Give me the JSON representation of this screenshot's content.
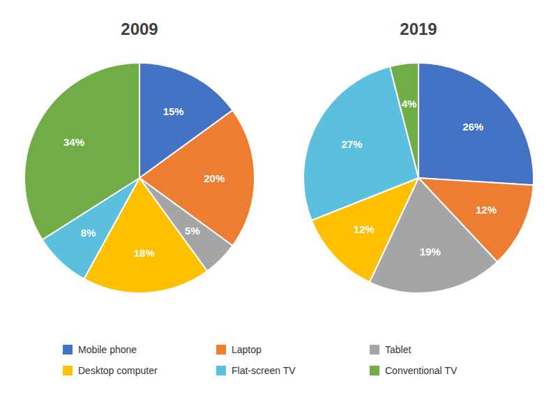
{
  "chart_data": [
    {
      "type": "pie",
      "title": "2009",
      "categories": [
        "Mobile phone",
        "Laptop",
        "Tablet",
        "Desktop computer",
        "Flat-screen TV",
        "Conventional TV"
      ],
      "values": [
        15,
        20,
        5,
        18,
        8,
        34
      ],
      "value_labels": [
        "15%",
        "20%",
        "5%",
        "18%",
        "8%",
        "34%"
      ],
      "colors": [
        "#4472C4",
        "#ED7D31",
        "#A5A5A5",
        "#FFC000",
        "#5BC0DE",
        "#70AD47"
      ],
      "data_labels": true,
      "legend": "bottom"
    },
    {
      "type": "pie",
      "title": "2019",
      "categories": [
        "Mobile phone",
        "Laptop",
        "Tablet",
        "Desktop computer",
        "Flat-screen TV",
        "Conventional TV"
      ],
      "values": [
        26,
        12,
        19,
        12,
        27,
        4
      ],
      "value_labels": [
        "26%",
        "12%",
        "19%",
        "12%",
        "27%",
        "4%"
      ],
      "colors": [
        "#4472C4",
        "#ED7D31",
        "#A5A5A5",
        "#FFC000",
        "#5BC0DE",
        "#70AD47"
      ],
      "data_labels": true
    }
  ]
}
